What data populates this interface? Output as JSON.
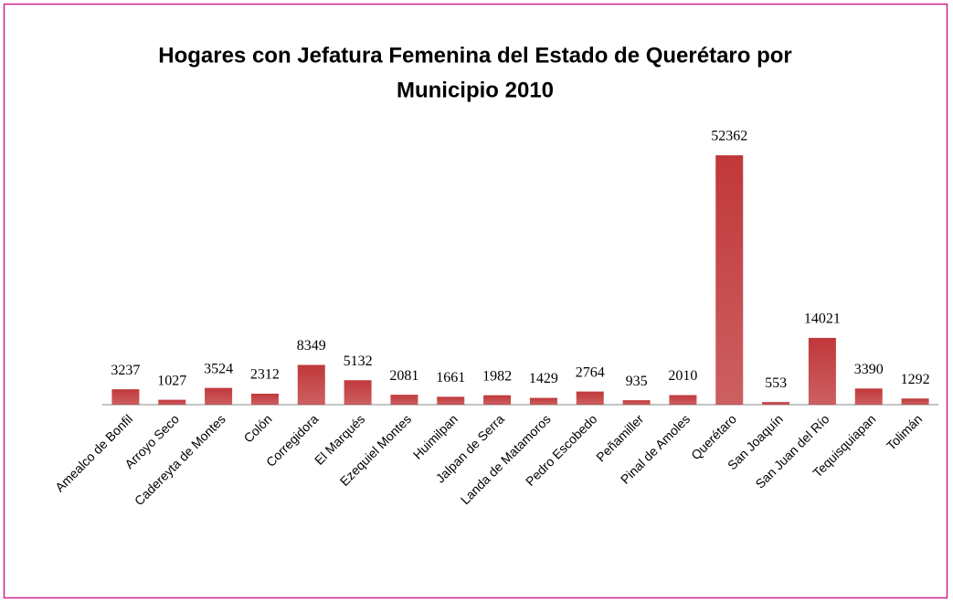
{
  "chart_data": {
    "type": "bar",
    "title": [
      "Hogares con Jefatura Femenina del Estado de Querétaro por",
      "Municipio 2010"
    ],
    "categories": [
      "Amealco de Bonfil",
      "Arroyo Seco",
      "Cadereyta de Montes",
      "Colón",
      "Corregidora",
      "El Marqués",
      "Ezequiel Montes",
      "Huimilpan",
      "Jalpan de Serra",
      "Landa de Matamoros",
      "Pedro Escobedo",
      "Peñamiller",
      "Pinal de Amoles",
      "Querétaro",
      "San Joaquín",
      "San Juan del Río",
      "Tequisquiapan",
      "Tolimán"
    ],
    "values": [
      3237,
      1027,
      3524,
      2312,
      8349,
      5132,
      2081,
      1661,
      1982,
      1429,
      2764,
      935,
      2010,
      52362,
      553,
      14021,
      3390,
      1292
    ],
    "color": "#c0383a"
  }
}
